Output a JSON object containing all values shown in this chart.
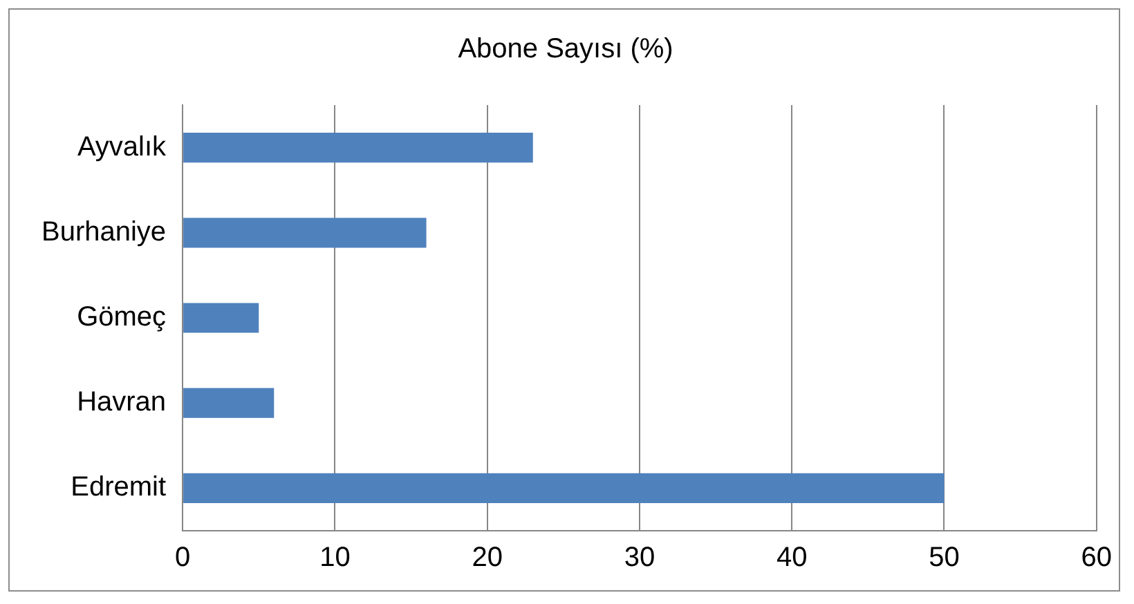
{
  "chart_data": {
    "type": "bar",
    "orientation": "horizontal",
    "title": "Abone Sayısı (%)",
    "categories": [
      "Ayvalık",
      "Burhaniye",
      "Gömeç",
      "Havran",
      "Edremit"
    ],
    "values": [
      23,
      16,
      5,
      6,
      50
    ],
    "color": "#4f81bd",
    "xlim": [
      0,
      60
    ],
    "xticks": [
      0,
      10,
      20,
      30,
      40,
      50,
      60
    ],
    "grid": "x"
  }
}
